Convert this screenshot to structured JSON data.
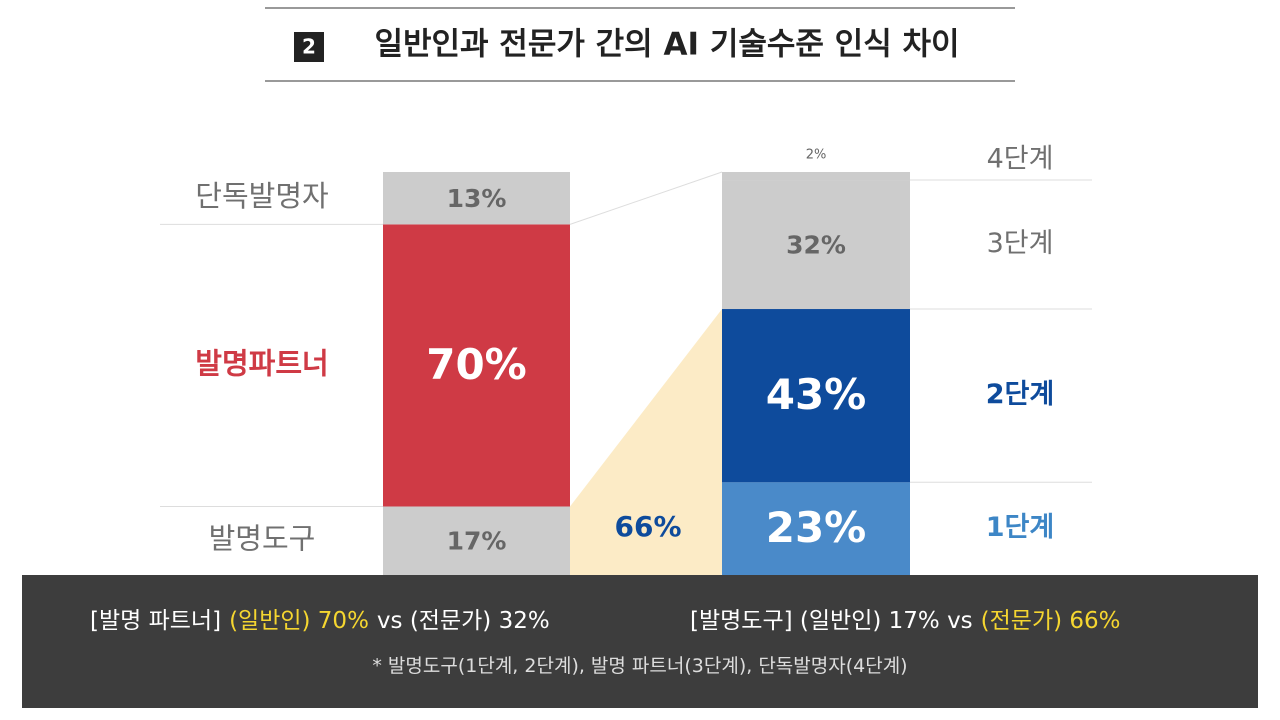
{
  "chart_data": {
    "type": "stacked_bar",
    "title_number": "2",
    "title": "일반인과 전문가 간의 AI 기술수준 인식 차이",
    "ylim": [
      0,
      100
    ],
    "bars": [
      {
        "segments": [
          {
            "name": "발명도구",
            "value": 17,
            "value_label": "17%",
            "color": "#cccccc",
            "label_color": "#707070"
          },
          {
            "name": "발명파트너",
            "value": 70,
            "value_label": "70%",
            "color": "#cf3a45",
            "label_color": "#cf3a45"
          },
          {
            "name": "단독발명자",
            "value": 13,
            "value_label": "13%",
            "color": "#cccccc",
            "label_color": "#707070"
          }
        ]
      },
      {
        "segments": [
          {
            "name": "1단계",
            "value": 23,
            "value_label": "23%",
            "color": "#4a8ac9",
            "label_color": "#3d86c6"
          },
          {
            "name": "2단계",
            "value": 43,
            "value_label": "43%",
            "color": "#0e4b9c",
            "label_color": "#0e4b9c"
          },
          {
            "name": "3단계",
            "value": 32,
            "value_label": "32%",
            "color": "#cccccc",
            "label_color": "#707070"
          },
          {
            "name": "4단계",
            "value": 2,
            "value_label": "2%",
            "color": "#cccccc",
            "label_color": "#707070"
          }
        ]
      }
    ],
    "highlight": {
      "value": 66,
      "value_label": "66%",
      "color": "#fcebc6",
      "label_color": "#0e4b9c"
    },
    "footer": {
      "summary_1": [
        "[발명 파트너]",
        "(일반인) 70%",
        "vs (전문가) 32%"
      ],
      "summary_2": [
        "[발명도구] (일반인) 17% vs",
        "(전문가) 66%"
      ],
      "note": "* 발명도구(1단계, 2단계), 발명 파트너(3단계), 단독발명자(4단계)"
    }
  }
}
